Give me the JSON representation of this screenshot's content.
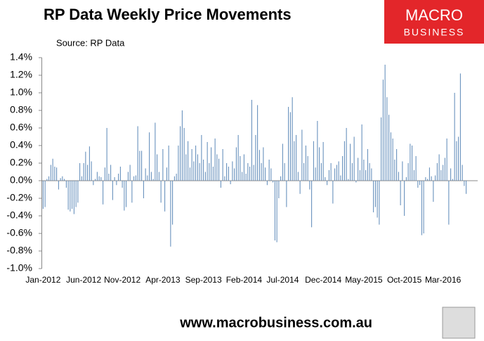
{
  "chart_data": {
    "type": "bar",
    "title": "RP Data Weekly Price Movements",
    "subtitle": "Source: RP Data",
    "logo_top": "MACRO",
    "logo_bottom": "BUSINESS",
    "footer": "www.macrobusiness.com.au",
    "color": "#5b87b7",
    "ylim": [
      -1.0,
      1.4
    ],
    "yticks": [
      {
        "value": -1.0,
        "label": "-1.0%"
      },
      {
        "value": -0.8,
        "label": "-0.8%"
      },
      {
        "value": -0.6,
        "label": "-0.6%"
      },
      {
        "value": -0.4,
        "label": "-0.4%"
      },
      {
        "value": -0.2,
        "label": "-0.2%"
      },
      {
        "value": 0,
        "label": "0.0%"
      },
      {
        "value": 0.2,
        "label": "0.2%"
      },
      {
        "value": 0.4,
        "label": "0.4%"
      },
      {
        "value": 0.6,
        "label": "0.6%"
      },
      {
        "value": 0.8,
        "label": "0.8%"
      },
      {
        "value": 1.0,
        "label": "1.0%"
      },
      {
        "value": 1.2,
        "label": "1.2%"
      },
      {
        "value": 1.4,
        "label": "1.4%"
      }
    ],
    "grid": false,
    "categories": [
      "Jan-2012",
      null,
      null,
      null,
      null,
      null,
      null,
      null,
      null,
      null,
      null,
      null,
      null,
      null,
      null,
      null,
      null,
      null,
      null,
      null,
      null,
      "Jun-2012",
      null,
      null,
      null,
      null,
      null,
      null,
      null,
      null,
      null,
      null,
      null,
      null,
      null,
      null,
      null,
      null,
      null,
      null,
      null,
      "Nov-2012",
      null,
      null,
      null,
      null,
      null,
      null,
      null,
      null,
      null,
      null,
      null,
      null,
      null,
      null,
      null,
      null,
      null,
      null,
      null,
      null,
      "Apr-2013",
      null,
      null,
      null,
      null,
      null,
      null,
      null,
      null,
      null,
      null,
      null,
      null,
      null,
      null,
      null,
      null,
      null,
      null,
      null,
      null,
      "Sep-2013",
      null,
      null,
      null,
      null,
      null,
      null,
      null,
      null,
      null,
      null,
      null,
      null,
      null,
      null,
      null,
      null,
      null,
      null,
      null,
      null,
      "Feb-2014",
      null,
      null,
      null,
      null,
      null,
      null,
      null,
      null,
      null,
      null,
      null,
      null,
      null,
      null,
      null,
      null,
      null,
      null,
      null,
      "Jul-2014",
      null,
      null,
      null,
      null,
      null,
      null,
      null,
      null,
      null,
      null,
      null,
      null,
      null,
      null,
      null,
      null,
      null,
      null,
      null,
      null,
      "Dec-2014",
      null,
      null,
      null,
      null,
      null,
      null,
      null,
      null,
      null,
      null,
      null,
      null,
      null,
      null,
      null,
      null,
      null,
      null,
      null,
      null,
      "May-2015",
      null,
      null,
      null,
      null,
      null,
      null,
      null,
      null,
      null,
      null,
      null,
      null,
      null,
      null,
      null,
      null,
      null,
      null,
      null,
      null,
      "Oct-2015",
      null,
      null,
      null,
      null,
      null,
      null,
      null,
      null,
      null,
      null,
      null,
      null,
      null,
      null,
      null,
      null,
      null,
      null,
      null,
      "Mar-2016",
      null,
      null,
      null,
      null,
      null,
      null,
      null,
      null,
      null,
      null,
      null,
      null
    ],
    "values": [
      -0.32,
      -0.3,
      0.02,
      0.05,
      0.18,
      0.25,
      0.16,
      0.15,
      -0.1,
      0.03,
      0.05,
      0.02,
      -0.08,
      -0.33,
      -0.35,
      -0.32,
      -0.38,
      -0.3,
      -0.25,
      0.2,
      0.05,
      0.2,
      0.33,
      0.18,
      0.39,
      0.22,
      -0.05,
      0.02,
      0.1,
      0.05,
      0.04,
      -0.27,
      0.15,
      0.6,
      0.08,
      0.18,
      -0.22,
      0.04,
      -0.05,
      0.08,
      0.16,
      -0.08,
      -0.34,
      -0.3,
      0.1,
      0.18,
      -0.25,
      0.05,
      0.06,
      0.62,
      0.34,
      0.34,
      -0.2,
      0.14,
      0.06,
      0.55,
      0.1,
      0.02,
      0.66,
      0.3,
      0.1,
      -0.25,
      0.36,
      -0.35,
      0.15,
      0.4,
      -0.75,
      -0.5,
      0.05,
      0.08,
      0.4,
      0.62,
      0.8,
      0.6,
      0.3,
      0.45,
      0.15,
      0.36,
      0.22,
      0.4,
      0.3,
      0.2,
      0.52,
      0.24,
      0.1,
      0.44,
      0.2,
      0.38,
      0.16,
      0.48,
      0.3,
      0.25,
      -0.08,
      0.36,
      0.05,
      0.2,
      0.16,
      -0.04,
      0.22,
      0.14,
      0.38,
      0.52,
      0.28,
      0.1,
      0.3,
      0.08,
      0.2,
      0.16,
      0.92,
      0.18,
      0.52,
      0.86,
      0.35,
      0.2,
      0.38,
      0.15,
      -0.05,
      0.24,
      0.14,
      -0.02,
      -0.68,
      -0.7,
      -0.2,
      0.05,
      0.42,
      0.2,
      -0.3,
      0.84,
      0.78,
      0.95,
      0.45,
      0.52,
      0.1,
      -0.15,
      0.58,
      0.2,
      0.4,
      0.28,
      -0.1,
      -0.53,
      0.45,
      0.15,
      0.68,
      0.38,
      0.2,
      0.44,
      0.04,
      -0.05,
      0.12,
      0.2,
      -0.26,
      0.14,
      0.18,
      0.22,
      0.06,
      0.28,
      0.45,
      0.6,
      0.02,
      0.42,
      0.2,
      0.5,
      -0.02,
      0.26,
      0.12,
      0.64,
      0.24,
      0.12,
      0.36,
      0.2,
      0.14,
      -0.36,
      -0.3,
      -0.42,
      -0.5,
      0.72,
      1.15,
      1.32,
      0.95,
      0.75,
      0.55,
      0.48,
      0.24,
      0.36,
      0.1,
      -0.28,
      0.22,
      -0.4,
      0.04,
      0.2,
      0.42,
      0.4,
      0.12,
      0.28,
      -0.08,
      -0.05,
      -0.62,
      -0.6,
      0.04,
      0.02,
      0.15,
      0.05,
      -0.24,
      0.06,
      0.2,
      0.3,
      0.12,
      0.18,
      0.26,
      0.48,
      -0.5,
      0.14,
      0.02,
      1.0,
      0.45,
      0.5,
      1.22,
      0.18,
      -0.06,
      -0.15
    ]
  }
}
